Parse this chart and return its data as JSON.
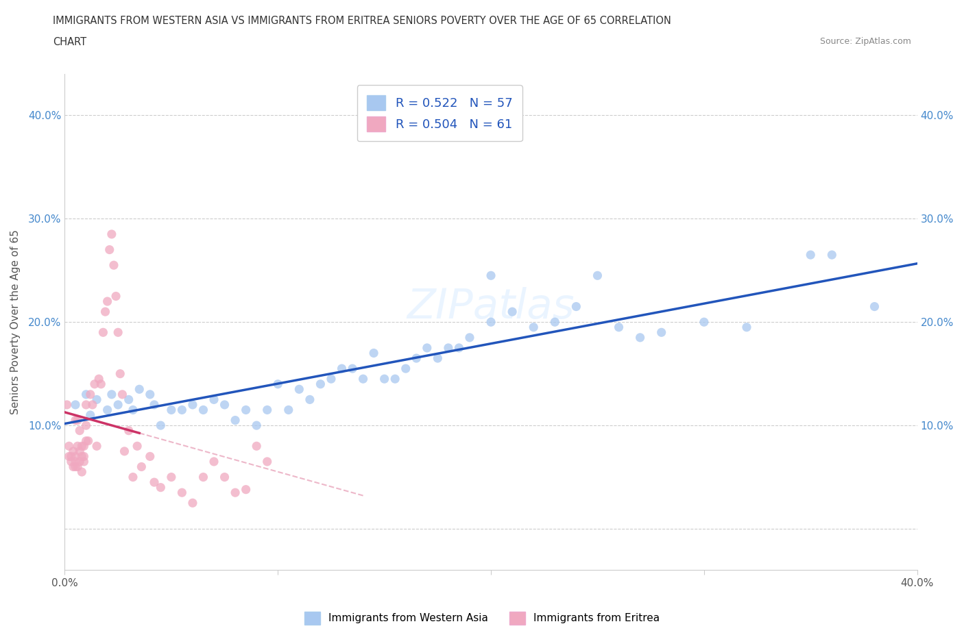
{
  "title_line1": "IMMIGRANTS FROM WESTERN ASIA VS IMMIGRANTS FROM ERITREA SENIORS POVERTY OVER THE AGE OF 65 CORRELATION",
  "title_line2": "CHART",
  "source": "Source: ZipAtlas.com",
  "ylabel": "Seniors Poverty Over the Age of 65",
  "xlim": [
    0.0,
    0.4
  ],
  "ylim": [
    -0.04,
    0.44
  ],
  "yticks": [
    0.0,
    0.1,
    0.2,
    0.3,
    0.4
  ],
  "xticks": [
    0.0,
    0.1,
    0.2,
    0.3,
    0.4
  ],
  "legend_r_western": "0.522",
  "legend_n_western": "57",
  "legend_r_eritrea": "0.504",
  "legend_n_eritrea": "61",
  "color_western": "#A8C8F0",
  "color_eritrea": "#F0A8C0",
  "trendline_western_color": "#2255BB",
  "trendline_eritrea_color": "#CC3366",
  "watermark": "ZIPatlas",
  "western_asia_x": [
    0.005,
    0.01,
    0.012,
    0.015,
    0.02,
    0.022,
    0.025,
    0.03,
    0.032,
    0.035,
    0.04,
    0.042,
    0.045,
    0.05,
    0.055,
    0.06,
    0.065,
    0.07,
    0.075,
    0.08,
    0.085,
    0.09,
    0.095,
    0.1,
    0.105,
    0.11,
    0.115,
    0.12,
    0.125,
    0.13,
    0.135,
    0.14,
    0.145,
    0.15,
    0.155,
    0.16,
    0.165,
    0.17,
    0.175,
    0.18,
    0.185,
    0.19,
    0.2,
    0.21,
    0.22,
    0.23,
    0.24,
    0.25,
    0.26,
    0.27,
    0.28,
    0.3,
    0.32,
    0.35,
    0.36,
    0.38,
    0.2
  ],
  "western_asia_y": [
    0.12,
    0.13,
    0.11,
    0.125,
    0.115,
    0.13,
    0.12,
    0.125,
    0.115,
    0.135,
    0.13,
    0.12,
    0.1,
    0.115,
    0.115,
    0.12,
    0.115,
    0.125,
    0.12,
    0.105,
    0.115,
    0.1,
    0.115,
    0.14,
    0.115,
    0.135,
    0.125,
    0.14,
    0.145,
    0.155,
    0.155,
    0.145,
    0.17,
    0.145,
    0.145,
    0.155,
    0.165,
    0.175,
    0.165,
    0.175,
    0.175,
    0.185,
    0.2,
    0.21,
    0.195,
    0.2,
    0.215,
    0.245,
    0.195,
    0.185,
    0.19,
    0.2,
    0.195,
    0.265,
    0.265,
    0.215,
    0.245
  ],
  "eritrea_x": [
    0.001,
    0.002,
    0.002,
    0.003,
    0.003,
    0.004,
    0.004,
    0.005,
    0.005,
    0.005,
    0.006,
    0.006,
    0.007,
    0.007,
    0.008,
    0.008,
    0.009,
    0.009,
    0.01,
    0.01,
    0.011,
    0.012,
    0.013,
    0.014,
    0.015,
    0.016,
    0.017,
    0.018,
    0.019,
    0.02,
    0.021,
    0.022,
    0.023,
    0.024,
    0.025,
    0.026,
    0.027,
    0.028,
    0.03,
    0.032,
    0.034,
    0.036,
    0.04,
    0.042,
    0.045,
    0.05,
    0.055,
    0.06,
    0.065,
    0.07,
    0.075,
    0.08,
    0.085,
    0.09,
    0.095,
    0.005,
    0.006,
    0.007,
    0.008,
    0.009,
    0.01
  ],
  "eritrea_y": [
    0.12,
    0.08,
    0.07,
    0.065,
    0.07,
    0.06,
    0.075,
    0.06,
    0.065,
    0.07,
    0.06,
    0.08,
    0.075,
    0.065,
    0.055,
    0.07,
    0.065,
    0.08,
    0.12,
    0.1,
    0.085,
    0.13,
    0.12,
    0.14,
    0.08,
    0.145,
    0.14,
    0.19,
    0.21,
    0.22,
    0.27,
    0.285,
    0.255,
    0.225,
    0.19,
    0.15,
    0.13,
    0.075,
    0.095,
    0.05,
    0.08,
    0.06,
    0.07,
    0.045,
    0.04,
    0.05,
    0.035,
    0.025,
    0.05,
    0.065,
    0.05,
    0.035,
    0.038,
    0.08,
    0.065,
    0.105,
    0.105,
    0.095,
    0.08,
    0.07,
    0.085
  ]
}
